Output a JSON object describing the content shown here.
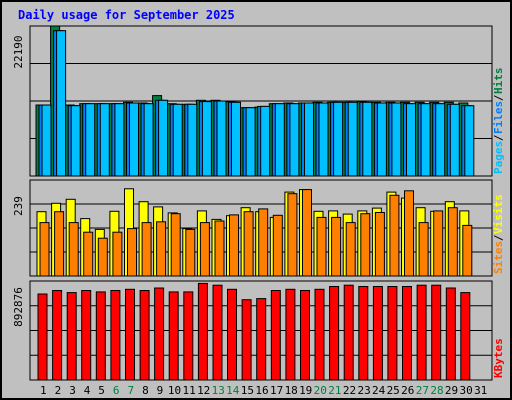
{
  "chart_data": [
    {
      "type": "bar",
      "title": "Daily usage for September 2025",
      "categories": [
        "1",
        "2",
        "3",
        "4",
        "5",
        "6",
        "7",
        "8",
        "9",
        "10",
        "11",
        "12",
        "13",
        "14",
        "15",
        "16",
        "17",
        "18",
        "19",
        "20",
        "21",
        "22",
        "23",
        "24",
        "25",
        "26",
        "27",
        "28",
        "29",
        "30",
        "31"
      ],
      "weekend_days": [
        "6",
        "7",
        "13",
        "14",
        "20",
        "21",
        "27",
        "28"
      ],
      "ylim": [
        0,
        22190
      ],
      "ymax_label": "22190",
      "legend": [
        "Pages",
        "Files",
        "Hits"
      ],
      "series": [
        {
          "name": "Hits",
          "color": "#008040",
          "values": [
            10500,
            22190,
            10500,
            10700,
            10700,
            10700,
            10900,
            10800,
            11900,
            10700,
            10600,
            11200,
            11200,
            11000,
            10100,
            10200,
            10700,
            10800,
            10800,
            10900,
            10900,
            10900,
            11000,
            10900,
            10900,
            10900,
            10900,
            10900,
            10900,
            10800,
            0
          ]
        },
        {
          "name": "Files",
          "color": "#0080ff",
          "values": [
            10500,
            21500,
            10400,
            10700,
            10700,
            10700,
            10800,
            10700,
            11200,
            10600,
            10600,
            11000,
            11100,
            10900,
            10100,
            10300,
            10700,
            10700,
            10800,
            10800,
            10900,
            10900,
            10900,
            10800,
            10800,
            10700,
            10700,
            10700,
            10600,
            10400,
            0
          ]
        },
        {
          "name": "Pages",
          "color": "#00c0ff",
          "values": [
            10500,
            21500,
            10400,
            10700,
            10700,
            10700,
            10800,
            10700,
            11200,
            10600,
            10600,
            11000,
            11100,
            10900,
            10100,
            10300,
            10700,
            10700,
            10800,
            10800,
            10900,
            10900,
            10900,
            10800,
            10800,
            10700,
            10700,
            10700,
            10600,
            10400,
            0
          ]
        }
      ]
    },
    {
      "type": "bar",
      "categories": [
        "1",
        "2",
        "3",
        "4",
        "5",
        "6",
        "7",
        "8",
        "9",
        "10",
        "11",
        "12",
        "13",
        "14",
        "15",
        "16",
        "17",
        "18",
        "19",
        "20",
        "21",
        "22",
        "23",
        "24",
        "25",
        "26",
        "27",
        "28",
        "29",
        "30",
        "31"
      ],
      "ylim": [
        0,
        239
      ],
      "ymax_label": "239",
      "legend": [
        "Sites",
        "Visits"
      ],
      "series": [
        {
          "name": "Visits",
          "color": "#ffff00",
          "values": [
            160,
            181,
            191,
            143,
            116,
            161,
            217,
            185,
            172,
            157,
            118,
            162,
            141,
            150,
            170,
            160,
            146,
            209,
            215,
            161,
            162,
            154,
            162,
            169,
            209,
            194,
            170,
            161,
            185,
            162,
            0
          ]
        },
        {
          "name": "Sites",
          "color": "#ff8000",
          "values": [
            133,
            160,
            133,
            109,
            94,
            109,
            118,
            133,
            135,
            155,
            116,
            133,
            137,
            152,
            160,
            167,
            151,
            205,
            215,
            146,
            146,
            133,
            155,
            158,
            201,
            212,
            133,
            162,
            170,
            126,
            0
          ]
        }
      ]
    },
    {
      "type": "bar",
      "categories": [
        "1",
        "2",
        "3",
        "4",
        "5",
        "6",
        "7",
        "8",
        "9",
        "10",
        "11",
        "12",
        "13",
        "14",
        "15",
        "16",
        "17",
        "18",
        "19",
        "20",
        "21",
        "22",
        "23",
        "24",
        "25",
        "26",
        "27",
        "28",
        "29",
        "30",
        "31"
      ],
      "ylim": [
        0,
        892876
      ],
      "ymax_label": "892876",
      "legend": [
        "KBytes"
      ],
      "series": [
        {
          "name": "KBytes",
          "color": "#ff0000",
          "values": [
            776000,
            807000,
            788000,
            807000,
            795000,
            807000,
            818000,
            807000,
            830000,
            795000,
            795000,
            871000,
            855000,
            818000,
            724000,
            734000,
            807000,
            818000,
            807000,
            818000,
            843000,
            855000,
            843000,
            843000,
            843000,
            843000,
            855000,
            855000,
            830000,
            788000,
            0
          ]
        }
      ]
    }
  ]
}
